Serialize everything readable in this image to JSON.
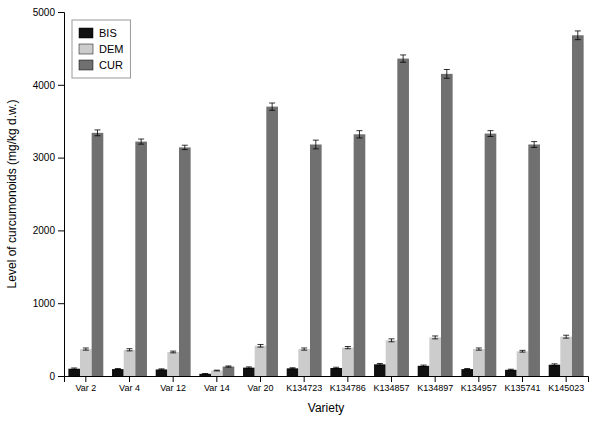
{
  "chart_data": {
    "type": "bar",
    "xlabel": "Variety",
    "ylabel": "Level of curcumonoids (mg/kg d.w.)",
    "categories": [
      "Var 2",
      "Var 4",
      "Var 12",
      "Var 14",
      "Var 20",
      "K134723",
      "K134786",
      "K134857",
      "K134897",
      "K134957",
      "K135741",
      "K145023"
    ],
    "series": [
      {
        "name": "BIS",
        "color": "#111111",
        "values": [
          100,
          95,
          90,
          30,
          115,
          105,
          110,
          160,
          140,
          95,
          85,
          155
        ],
        "errors": [
          10,
          8,
          8,
          3,
          10,
          8,
          10,
          12,
          10,
          8,
          8,
          12
        ]
      },
      {
        "name": "DEM",
        "color": "#cccccc",
        "values": [
          370,
          360,
          330,
          75,
          415,
          370,
          390,
          490,
          530,
          370,
          340,
          540
        ],
        "errors": [
          15,
          15,
          12,
          5,
          18,
          15,
          15,
          20,
          20,
          15,
          12,
          20
        ]
      },
      {
        "name": "CUR",
        "color": "#707070",
        "values": [
          3340,
          3220,
          3140,
          130,
          3700,
          3180,
          3320,
          4360,
          4150,
          3330,
          3180,
          4680
        ],
        "errors": [
          40,
          35,
          30,
          8,
          50,
          60,
          50,
          50,
          60,
          40,
          40,
          60
        ]
      }
    ],
    "ylim": [
      0,
      5000
    ],
    "yticks": [
      0,
      1000,
      2000,
      3000,
      4000,
      5000
    ],
    "grid": false,
    "legend": "upper-left"
  }
}
